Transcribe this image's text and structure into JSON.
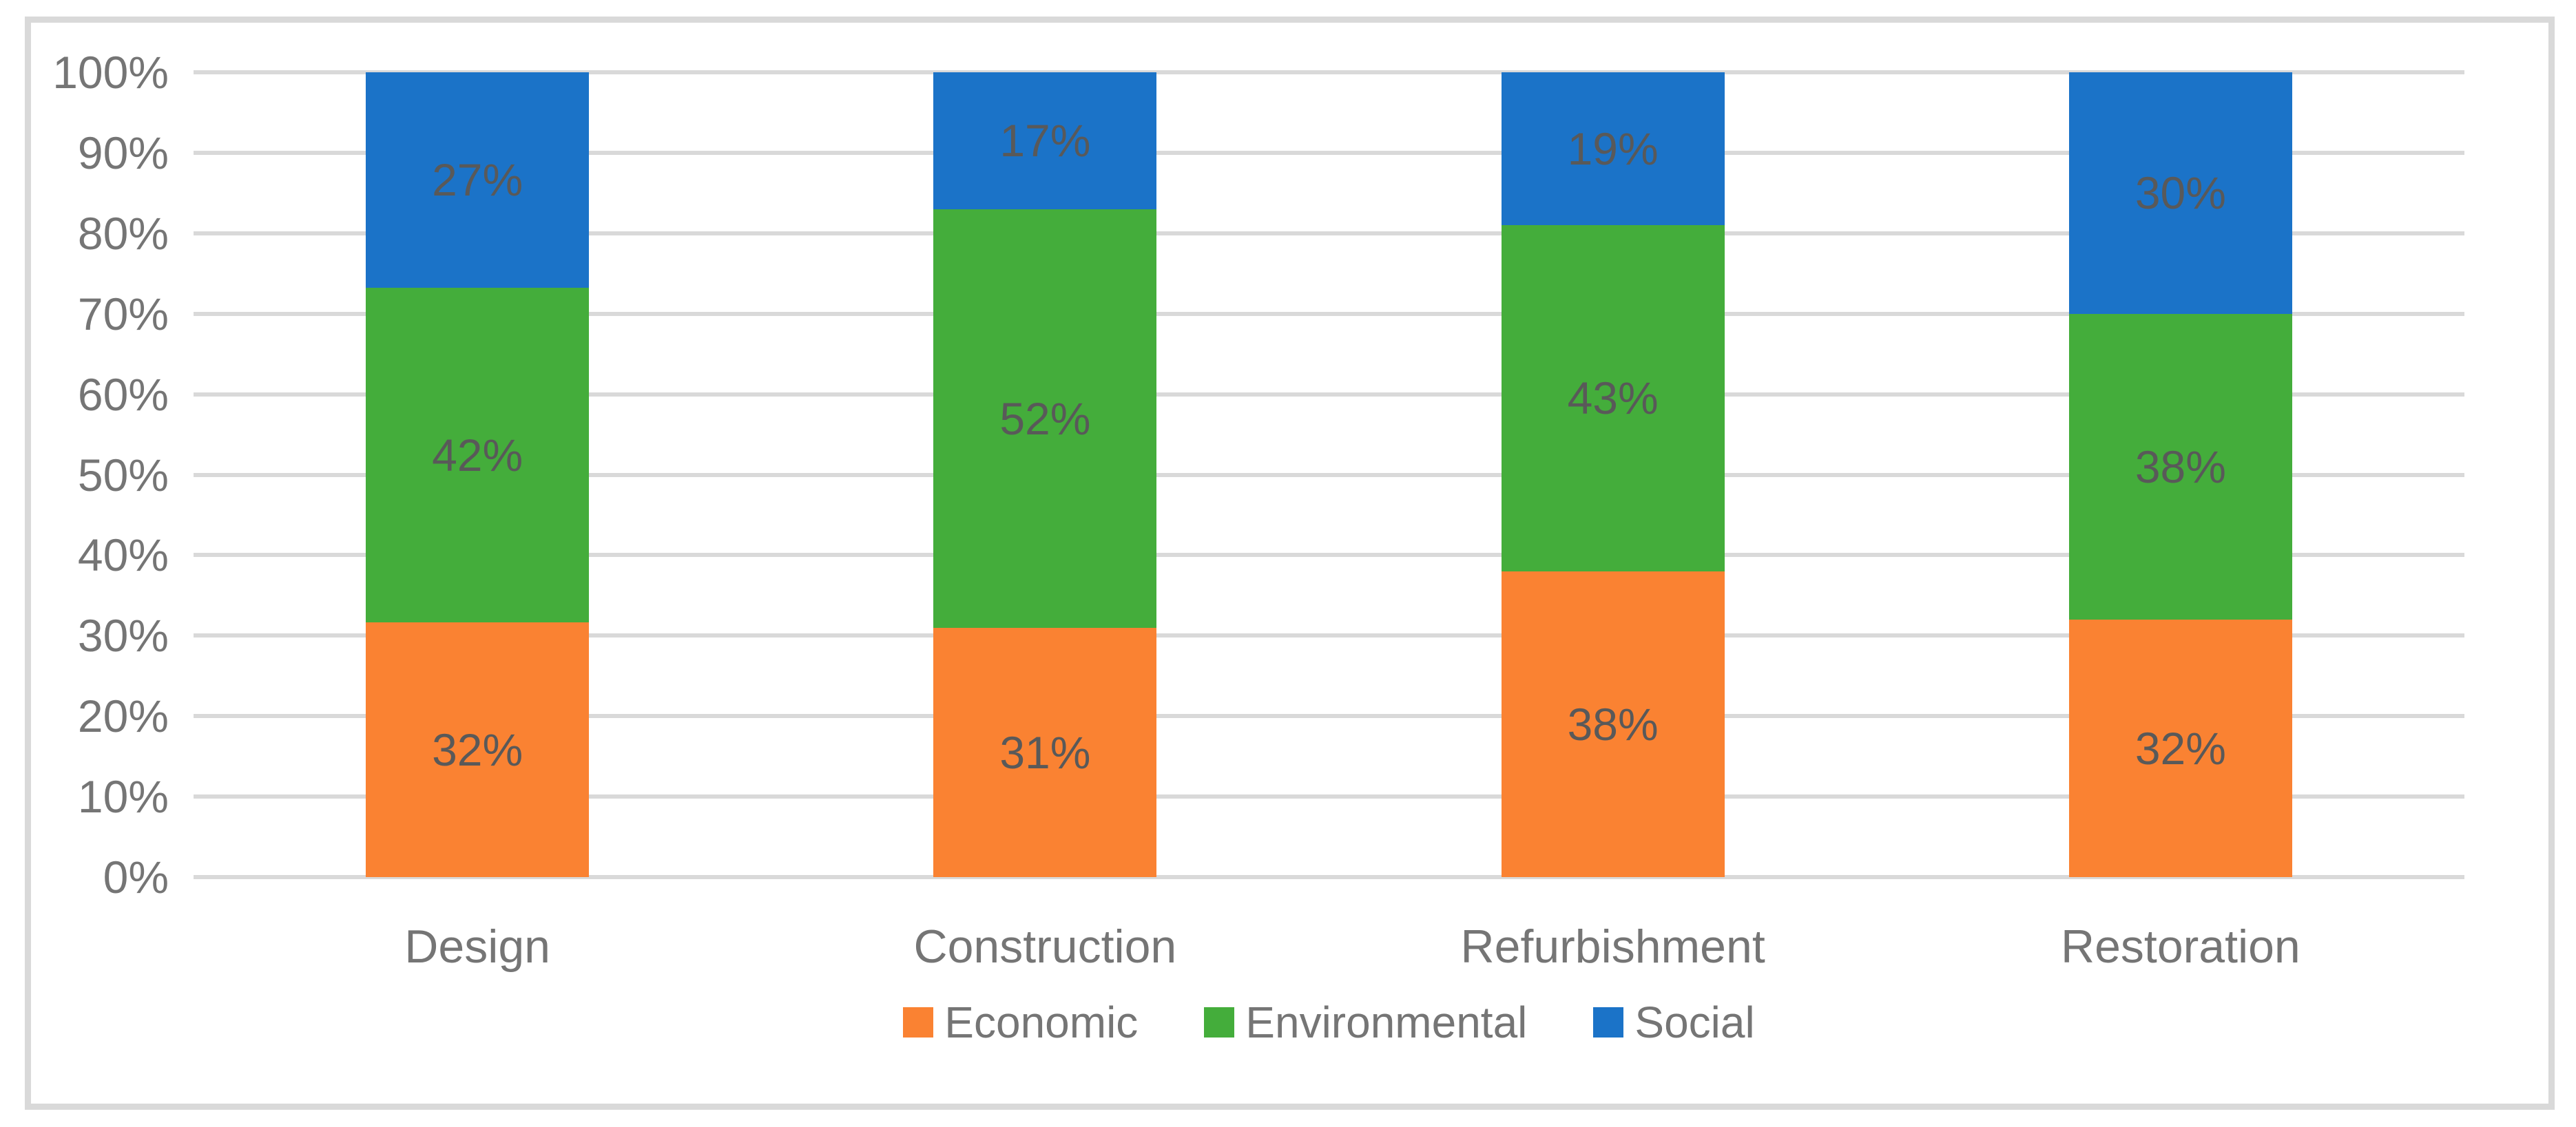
{
  "figure": {
    "background": "#FFFFFF",
    "border_color": "#D9D9D9",
    "gridline_color": "#D9D9D9",
    "tick_text_color": "#757575",
    "category_text_color": "#757575",
    "data_label_color": "#595959",
    "legend_text_color": "#757575"
  },
  "chart_data": {
    "type": "bar",
    "subtype": "stacked-100-percent",
    "title": "",
    "xlabel": "",
    "ylabel": "",
    "categories": [
      "Design",
      "Construction",
      "Refurbishment",
      "Restoration"
    ],
    "series": [
      {
        "name": "Economic",
        "color": "#FA8232",
        "values": [
          32,
          31,
          38,
          32
        ],
        "labels": [
          "32%",
          "31%",
          "38%",
          "32%"
        ]
      },
      {
        "name": "Environmental",
        "color": "#44AD3B",
        "values": [
          42,
          52,
          43,
          38
        ],
        "labels": [
          "42%",
          "52%",
          "43%",
          "38%"
        ]
      },
      {
        "name": "Social",
        "color": "#1B73C8",
        "values": [
          27,
          17,
          19,
          30
        ],
        "labels": [
          "27%",
          "17%",
          "19%",
          "30%"
        ]
      }
    ],
    "y_axis": {
      "min": 0,
      "max": 100,
      "tick_step": 10,
      "tick_labels": [
        "0%",
        "10%",
        "20%",
        "30%",
        "40%",
        "50%",
        "60%",
        "70%",
        "80%",
        "90%",
        "100%"
      ],
      "grid": true
    },
    "legend": {
      "position": "bottom",
      "entries": [
        "Economic",
        "Environmental",
        "Social"
      ]
    }
  }
}
